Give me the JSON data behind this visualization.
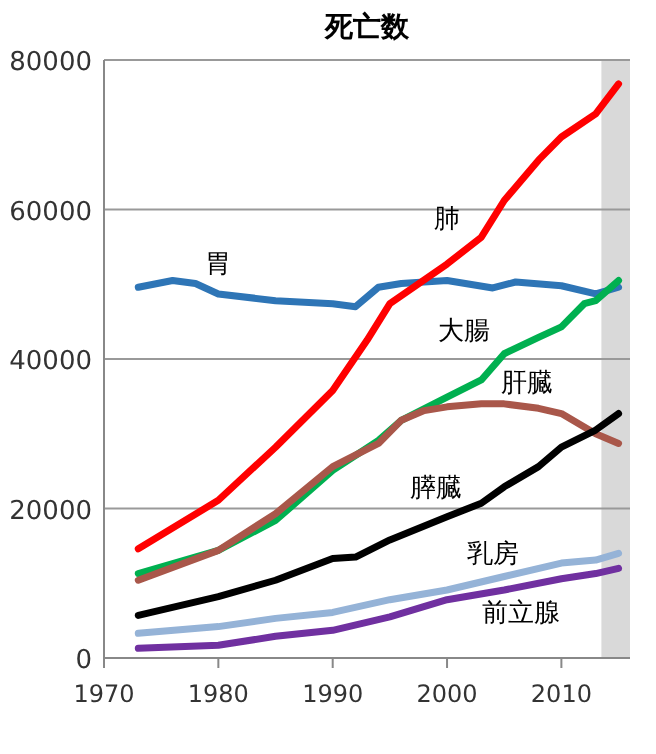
{
  "chart_data": {
    "type": "line",
    "title": "死亡数",
    "xlim": [
      1970,
      2016
    ],
    "xticks": [
      1970,
      1980,
      1990,
      2000,
      2010
    ],
    "ylim": [
      0,
      80000
    ],
    "yticks": [
      0,
      20000,
      40000,
      60000,
      80000
    ],
    "grid": "y",
    "legend": false,
    "line_style": "solid",
    "marker": "none",
    "bands": [
      {
        "axis": "x",
        "from": 2013.5,
        "to": 2016,
        "color": "#d9d9d9"
      }
    ],
    "series": [
      {
        "name": "胃",
        "color": "#2e75b6",
        "x": [
          1973,
          1976,
          1978,
          1980,
          1985,
          1990,
          1992,
          1994,
          1996,
          2000,
          2004,
          2006,
          2010,
          2013,
          2015
        ],
        "values": [
          49600,
          50500,
          50100,
          48700,
          47800,
          47400,
          47000,
          49600,
          50100,
          50500,
          49500,
          50300,
          49800,
          48700,
          49600
        ]
      },
      {
        "name": "肺",
        "color": "#ff0000",
        "x": [
          1973,
          1980,
          1985,
          1990,
          1993,
          1995,
          2000,
          2003,
          2005,
          2008,
          2010,
          2013,
          2015
        ],
        "values": [
          14600,
          21100,
          28200,
          35800,
          42500,
          47400,
          52700,
          56300,
          61200,
          66600,
          69700,
          72800,
          76800
        ]
      },
      {
        "name": "大腸",
        "color": "#00b050",
        "x": [
          1973,
          1980,
          1985,
          1990,
          1994,
          1996,
          2000,
          2003,
          2005,
          2008,
          2010,
          2012,
          2013,
          2015
        ],
        "values": [
          11300,
          14400,
          18400,
          25100,
          29100,
          31800,
          34900,
          37200,
          40700,
          42900,
          44300,
          47400,
          47800,
          50500
        ]
      },
      {
        "name": "肝臓",
        "color": "#a9574a",
        "x": [
          1973,
          1980,
          1985,
          1990,
          1994,
          1996,
          1998,
          2000,
          2003,
          2005,
          2008,
          2010,
          2012,
          2013,
          2015
        ],
        "values": [
          10400,
          14400,
          19300,
          25600,
          28700,
          31800,
          33100,
          33600,
          34000,
          34000,
          33400,
          32700,
          30900,
          30000,
          28700
        ]
      },
      {
        "name": "膵臓",
        "color": "#000000",
        "x": [
          1973,
          1980,
          1985,
          1990,
          1992,
          1995,
          2000,
          2003,
          2005,
          2008,
          2010,
          2013,
          2015
        ],
        "values": [
          5700,
          8200,
          10400,
          13300,
          13500,
          15800,
          18900,
          20700,
          22900,
          25600,
          28200,
          30500,
          32700
        ]
      },
      {
        "name": "乳房",
        "color": "#95b3d7",
        "x": [
          1973,
          1980,
          1985,
          1990,
          1995,
          2000,
          2005,
          2010,
          2013,
          2015
        ],
        "values": [
          3300,
          4200,
          5300,
          6100,
          7800,
          9100,
          10900,
          12700,
          13100,
          14000
        ]
      },
      {
        "name": "前立腺",
        "color": "#7030a0",
        "x": [
          1973,
          1980,
          1985,
          1990,
          1995,
          2000,
          2005,
          2010,
          2013,
          2015
        ],
        "values": [
          1300,
          1700,
          2900,
          3700,
          5500,
          7800,
          9100,
          10600,
          11300,
          12000
        ]
      }
    ]
  }
}
